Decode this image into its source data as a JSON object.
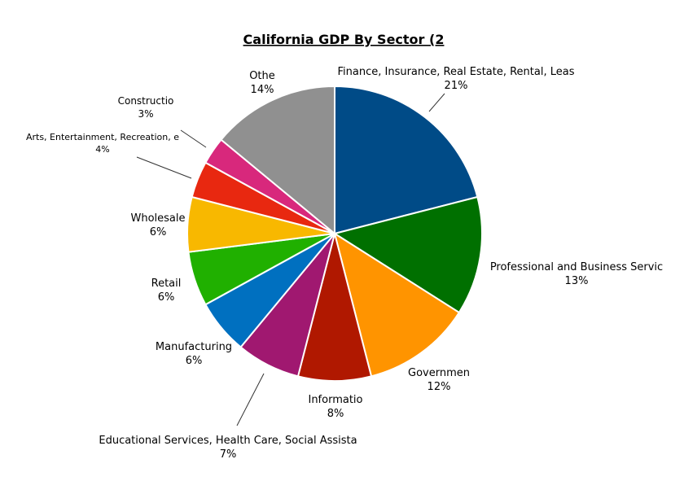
{
  "chart_data": {
    "type": "pie",
    "title": "California GDP By Sector (2",
    "slices": [
      {
        "label": "Finance, Insurance, Real Estate, Rental, Leas",
        "value": 21,
        "pct_label": "21%",
        "color": "#004b87"
      },
      {
        "label": "Professional and Business Servic",
        "value": 13,
        "pct_label": "13%",
        "color": "#007000"
      },
      {
        "label": "Governmen",
        "value": 12,
        "pct_label": "12%",
        "color": "#ff9400"
      },
      {
        "label": "Informatio",
        "value": 8,
        "pct_label": "8%",
        "color": "#b01800"
      },
      {
        "label": "Educational Services, Health Care, Social Assista",
        "value": 7,
        "pct_label": "7%",
        "color": "#a01870"
      },
      {
        "label": "Manufacturing",
        "value": 6,
        "pct_label": "6%",
        "color": "#0070c0"
      },
      {
        "label": "Retail",
        "value": 6,
        "pct_label": "6%",
        "color": "#20b000"
      },
      {
        "label": "Wholesale",
        "value": 6,
        "pct_label": "6%",
        "color": "#f8b800"
      },
      {
        "label": "Arts, Entertainment, Recreation, e",
        "value": 4,
        "pct_label": "4%",
        "color": "#e82810"
      },
      {
        "label": "Constructio",
        "value": 3,
        "pct_label": "3%",
        "color": "#d8287c"
      },
      {
        "label": "Othe",
        "value": 14,
        "pct_label": "14%",
        "color": "#909090"
      }
    ]
  }
}
